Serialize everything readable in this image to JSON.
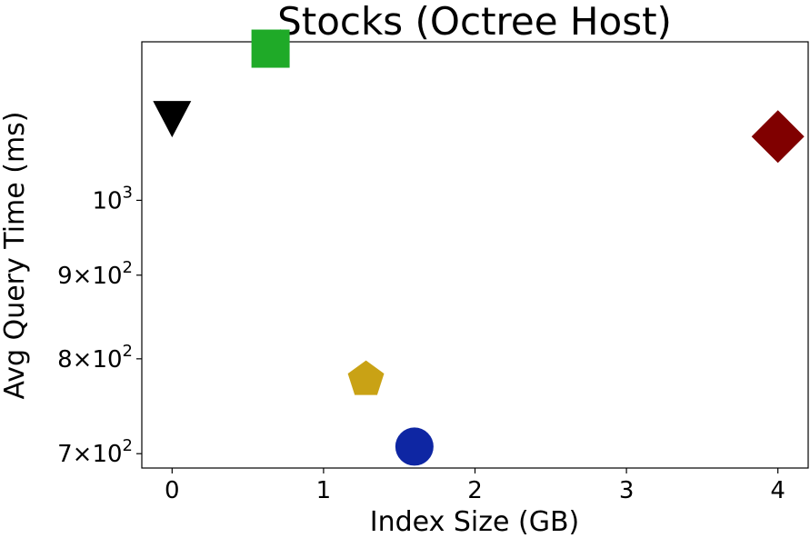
{
  "chart_data": {
    "type": "scatter",
    "title": "Stocks (Octree Host)",
    "xlabel": "Index Size (GB)",
    "ylabel": "Avg Query Time (ms)",
    "xlim": [
      -0.2,
      4.2
    ],
    "ylim": [
      686,
      1250
    ],
    "yscale": "log",
    "grid": false,
    "x_ticks": [
      {
        "value": 0,
        "label": "0"
      },
      {
        "value": 1,
        "label": "1"
      },
      {
        "value": 2,
        "label": "2"
      },
      {
        "value": 3,
        "label": "3"
      },
      {
        "value": 4,
        "label": "4"
      }
    ],
    "y_ticks": [
      {
        "value": 700,
        "base": "7",
        "sup": "2"
      },
      {
        "value": 800,
        "base": "8",
        "sup": "2"
      },
      {
        "value": 900,
        "base": "9",
        "sup": "2"
      },
      {
        "value": 1000,
        "base": "",
        "sup": "3"
      }
    ],
    "points": [
      {
        "x": 0.0,
        "y": 1121,
        "marker": "triangle-down",
        "color": "#000000"
      },
      {
        "x": 0.65,
        "y": 1238,
        "marker": "square",
        "color": "#1faa28"
      },
      {
        "x": 1.28,
        "y": 777,
        "marker": "pentagon",
        "color": "#c9a215"
      },
      {
        "x": 1.6,
        "y": 707,
        "marker": "circle",
        "color": "#0e26a3"
      },
      {
        "x": 4.0,
        "y": 1094,
        "marker": "diamond",
        "color": "#800000"
      }
    ]
  }
}
